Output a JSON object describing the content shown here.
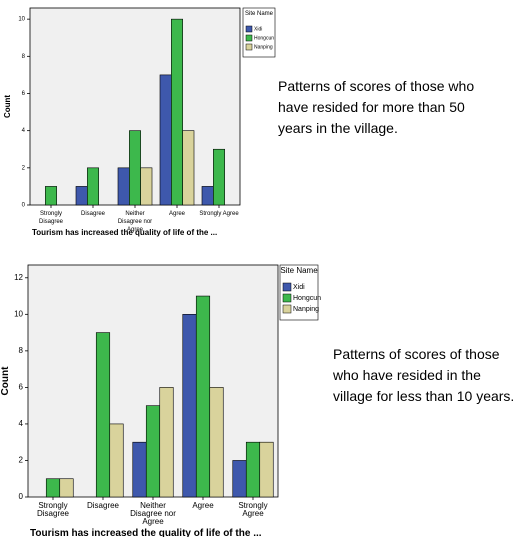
{
  "chart_data": [
    {
      "type": "bar",
      "caption": "Patterns of scores of those who have resided for more than 50 years in the village.",
      "xlabel": "Tourism has increased the quality of life of the ...",
      "ylabel": "Count",
      "legend_title": "Site Name",
      "legend": "right",
      "grid": false,
      "categories": [
        "Strongly Disagree",
        "Disagree",
        "Neither Disagree nor Agree",
        "Agree",
        "Strongly Agree"
      ],
      "series": [
        {
          "name": "Xidi",
          "color": "#3e58ac",
          "values": [
            0,
            1,
            2,
            7,
            1
          ]
        },
        {
          "name": "Hongcun",
          "color": "#3db84c",
          "values": [
            1,
            2,
            4,
            10,
            3
          ]
        },
        {
          "name": "Nanping",
          "color": "#d9d39c",
          "values": [
            0,
            0,
            2,
            4,
            0
          ]
        }
      ],
      "ylim": [
        0,
        10.6
      ],
      "yticks": [
        0,
        2,
        4,
        6,
        8,
        10
      ]
    },
    {
      "type": "bar",
      "caption": "Patterns of scores of those who have resided in the village for less than 10 years.",
      "xlabel": "Tourism has increased the quality of life of the ...",
      "ylabel": "Count",
      "legend_title": "Site Name",
      "legend": "right",
      "grid": false,
      "categories": [
        "Strongly Disagree",
        "Disagree",
        "Neither Disagree nor Agree",
        "Agree",
        "Strongly Agree"
      ],
      "series": [
        {
          "name": "Xidi",
          "color": "#3e58ac",
          "values": [
            0,
            0,
            3,
            10,
            2
          ]
        },
        {
          "name": "Hongcun",
          "color": "#3db84c",
          "values": [
            1,
            9,
            5,
            11,
            3
          ]
        },
        {
          "name": "Nanping",
          "color": "#d9d39c",
          "values": [
            1,
            4,
            6,
            6,
            3
          ]
        }
      ],
      "ylim": [
        0,
        12.7
      ],
      "yticks": [
        0,
        2,
        4,
        6,
        8,
        10,
        12
      ]
    }
  ]
}
